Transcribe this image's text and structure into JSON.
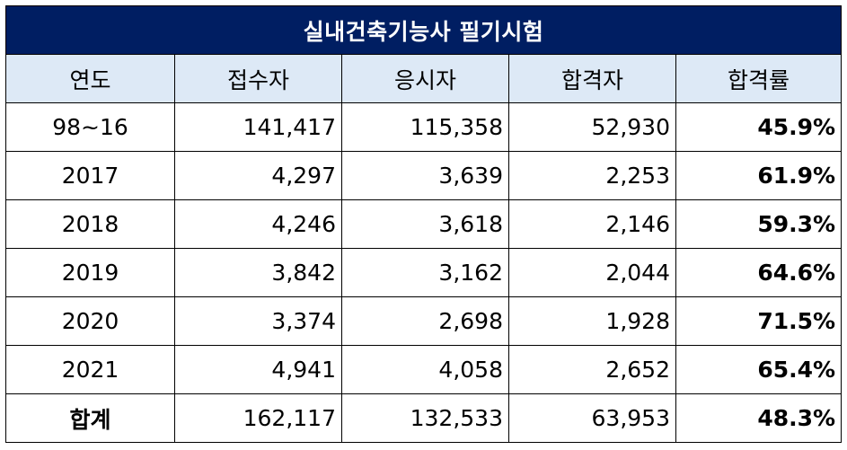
{
  "table": {
    "title": "실내건축기능사 필기시험",
    "headers": [
      "연도",
      "접수자",
      "응시자",
      "합격자",
      "합격률"
    ],
    "rows": [
      {
        "year": "98~16",
        "applicants": "141,417",
        "examinees": "115,358",
        "passers": "52,930",
        "pass_rate": "45.9%"
      },
      {
        "year": "2017",
        "applicants": "4,297",
        "examinees": "3,639",
        "passers": "2,253",
        "pass_rate": "61.9%"
      },
      {
        "year": "2018",
        "applicants": "4,246",
        "examinees": "3,618",
        "passers": "2,146",
        "pass_rate": "59.3%"
      },
      {
        "year": "2019",
        "applicants": "3,842",
        "examinees": "3,162",
        "passers": "2,044",
        "pass_rate": "64.6%"
      },
      {
        "year": "2020",
        "applicants": "3,374",
        "examinees": "2,698",
        "passers": "1,928",
        "pass_rate": "71.5%"
      },
      {
        "year": "2021",
        "applicants": "4,941",
        "examinees": "4,058",
        "passers": "2,652",
        "pass_rate": "65.4%"
      }
    ],
    "total": {
      "year": "합계",
      "applicants": "162,117",
      "examinees": "132,533",
      "passers": "63,953",
      "pass_rate": "48.3%"
    }
  },
  "colors": {
    "title_background": "#001e62",
    "title_text": "#ffffff",
    "header_background": "#dde9f6",
    "border": "#000000"
  }
}
